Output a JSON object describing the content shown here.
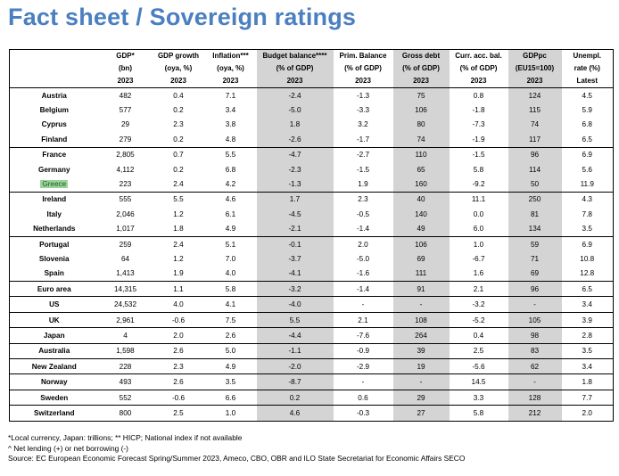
{
  "title": "Fact sheet / Sovereign ratings",
  "columns": [
    {
      "h1": "GDP*",
      "h2": "(bn)",
      "h3": "2023"
    },
    {
      "h1": "GDP growth",
      "h2": "(oya, %)",
      "h3": "2023"
    },
    {
      "h1": "Inflation***",
      "h2": "(oya, %)",
      "h3": "2023"
    },
    {
      "h1": "Budget balance****",
      "h2": "(% of GDP)",
      "h3": "2023"
    },
    {
      "h1": "Prim. Balance",
      "h2": "(% of GDP)",
      "h3": "2023"
    },
    {
      "h1": "Gross debt",
      "h2": "(% of GDP)",
      "h3": "2023"
    },
    {
      "h1": "Curr. acc. bal.",
      "h2": "(% of GDP)",
      "h3": "2023"
    },
    {
      "h1": "GDPpc",
      "h2": "(EU15=100)",
      "h3": "2023"
    },
    {
      "h1": "Unempl.",
      "h2": "rate (%)",
      "h3": "Latest"
    }
  ],
  "rows": [
    {
      "country": "Austria",
      "values": [
        "482",
        "0.4",
        "7.1",
        "-2.4",
        "-1.3",
        "75",
        "0.8",
        "124",
        "4.5"
      ]
    },
    {
      "country": "Belgium",
      "values": [
        "577",
        "0.2",
        "3.4",
        "-5.0",
        "-3.3",
        "106",
        "-1.8",
        "115",
        "5.9"
      ]
    },
    {
      "country": "Cyprus",
      "values": [
        "29",
        "2.3",
        "3.8",
        "1.8",
        "3.2",
        "80",
        "-7.3",
        "74",
        "6.8"
      ]
    },
    {
      "country": "Finland",
      "values": [
        "279",
        "0.2",
        "4.8",
        "-2.6",
        "-1.7",
        "74",
        "-1.9",
        "117",
        "6.5"
      ]
    },
    {
      "country": "France",
      "values": [
        "2,805",
        "0.7",
        "5.5",
        "-4.7",
        "-2.7",
        "110",
        "-1.5",
        "96",
        "6.9"
      ]
    },
    {
      "country": "Germany",
      "values": [
        "4,112",
        "0.2",
        "6.8",
        "-2.3",
        "-1.5",
        "65",
        "5.8",
        "114",
        "5.6"
      ]
    },
    {
      "country": "Greece",
      "values": [
        "223",
        "2.4",
        "4.2",
        "-1.3",
        "1.9",
        "160",
        "-9.2",
        "50",
        "11.9"
      ]
    },
    {
      "country": "Ireland",
      "values": [
        "555",
        "5.5",
        "4.6",
        "1.7",
        "2.3",
        "40",
        "11.1",
        "250",
        "4.3"
      ]
    },
    {
      "country": "Italy",
      "values": [
        "2,046",
        "1.2",
        "6.1",
        "-4.5",
        "-0.5",
        "140",
        "0.0",
        "81",
        "7.8"
      ]
    },
    {
      "country": "Netherlands",
      "values": [
        "1,017",
        "1.8",
        "4.9",
        "-2.1",
        "-1.4",
        "49",
        "6.0",
        "134",
        "3.5"
      ]
    },
    {
      "country": "Portugal",
      "values": [
        "259",
        "2.4",
        "5.1",
        "-0.1",
        "2.0",
        "106",
        "1.0",
        "59",
        "6.9"
      ]
    },
    {
      "country": "Slovenia",
      "values": [
        "64",
        "1.2",
        "7.0",
        "-3.7",
        "-5.0",
        "69",
        "-6.7",
        "71",
        "10.8"
      ]
    },
    {
      "country": "Spain",
      "values": [
        "1,413",
        "1.9",
        "4.0",
        "-4.1",
        "-1.6",
        "111",
        "1.6",
        "69",
        "12.8"
      ]
    },
    {
      "country": "Euro area",
      "values": [
        "14,315",
        "1.1",
        "5.8",
        "-3.2",
        "-1.4",
        "91",
        "2.1",
        "96",
        "6.5"
      ]
    },
    {
      "country": "US",
      "values": [
        "24,532",
        "4.0",
        "4.1",
        "-4.0",
        "-",
        "-",
        "-3.2",
        "-",
        "3.4"
      ]
    },
    {
      "country": "UK",
      "values": [
        "2,961",
        "-0.6",
        "7.5",
        "5.5",
        "2.1",
        "108",
        "-5.2",
        "105",
        "3.9"
      ]
    },
    {
      "country": "Japan",
      "values": [
        "4",
        "2.0",
        "2.6",
        "-4.4",
        "-7.6",
        "264",
        "0.4",
        "98",
        "2.8"
      ]
    },
    {
      "country": "Australia",
      "values": [
        "1,598",
        "2.6",
        "5.0",
        "-1.1",
        "-0.9",
        "39",
        "2.5",
        "83",
        "3.5"
      ]
    },
    {
      "country": "New Zealand",
      "values": [
        "228",
        "2.3",
        "4.9",
        "-2.0",
        "-2.9",
        "19",
        "-5.6",
        "62",
        "3.4"
      ]
    },
    {
      "country": "Norway",
      "values": [
        "493",
        "2.6",
        "3.5",
        "-8.7",
        "-",
        "-",
        "14.5",
        "-",
        "1.8"
      ]
    },
    {
      "country": "Sweden",
      "values": [
        "552",
        "-0.6",
        "6.6",
        "0.2",
        "0.6",
        "29",
        "3.3",
        "128",
        "7.7"
      ]
    },
    {
      "country": "Switzerland",
      "values": [
        "800",
        "2.5",
        "1.0",
        "4.6",
        "-0.3",
        "27",
        "5.8",
        "212",
        "2.0"
      ]
    }
  ],
  "highlight_row": "Greece",
  "footnotes": [
    "*Local currency, Japan: trillions; ** HICP; National index if not available",
    "^ Net lending (+) or net borrowing (-)",
    "Source: EC European Economic Forecast Spring/Summer 2023, Ameco, CBO, OBR and ILO State Secretariat for Economic Affairs SECO"
  ],
  "colors": {
    "title": "#4a7fc1",
    "shade": "#d4d4d4",
    "highlight": "#9bd39b"
  }
}
